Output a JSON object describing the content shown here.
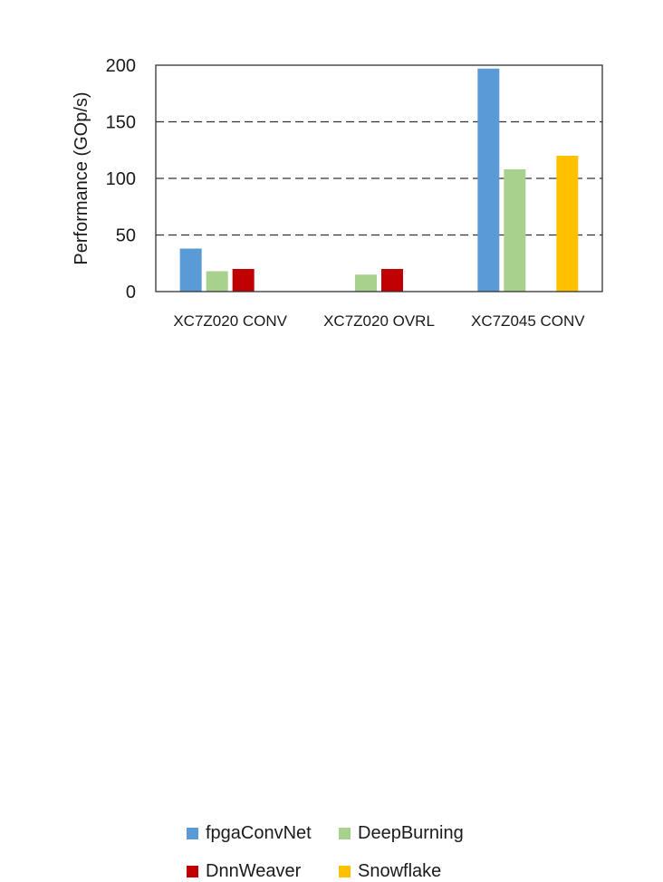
{
  "chart_data": {
    "type": "bar",
    "title": "",
    "xlabel": "",
    "ylabel": "Performance (GOp/s)",
    "ylim": [
      0,
      200
    ],
    "yticks": [
      0,
      50,
      100,
      150,
      200
    ],
    "grid": "dashed horizontal",
    "legend_placement": "bottom",
    "categories": [
      "XC7Z020 CONV",
      "XC7Z020 OVRL",
      "XC7Z045 CONV"
    ],
    "series": [
      {
        "name": "fpgaConvNet",
        "color": "#5b9bd5",
        "values": [
          38,
          null,
          197
        ]
      },
      {
        "name": "DeepBurning",
        "color": "#a9d18e",
        "values": [
          18,
          15,
          108
        ]
      },
      {
        "name": "DnnWeaver",
        "color": "#c00000",
        "values": [
          20,
          20,
          null
        ]
      },
      {
        "name": "Snowflake",
        "color": "#ffc000",
        "values": [
          null,
          null,
          120
        ]
      }
    ]
  }
}
